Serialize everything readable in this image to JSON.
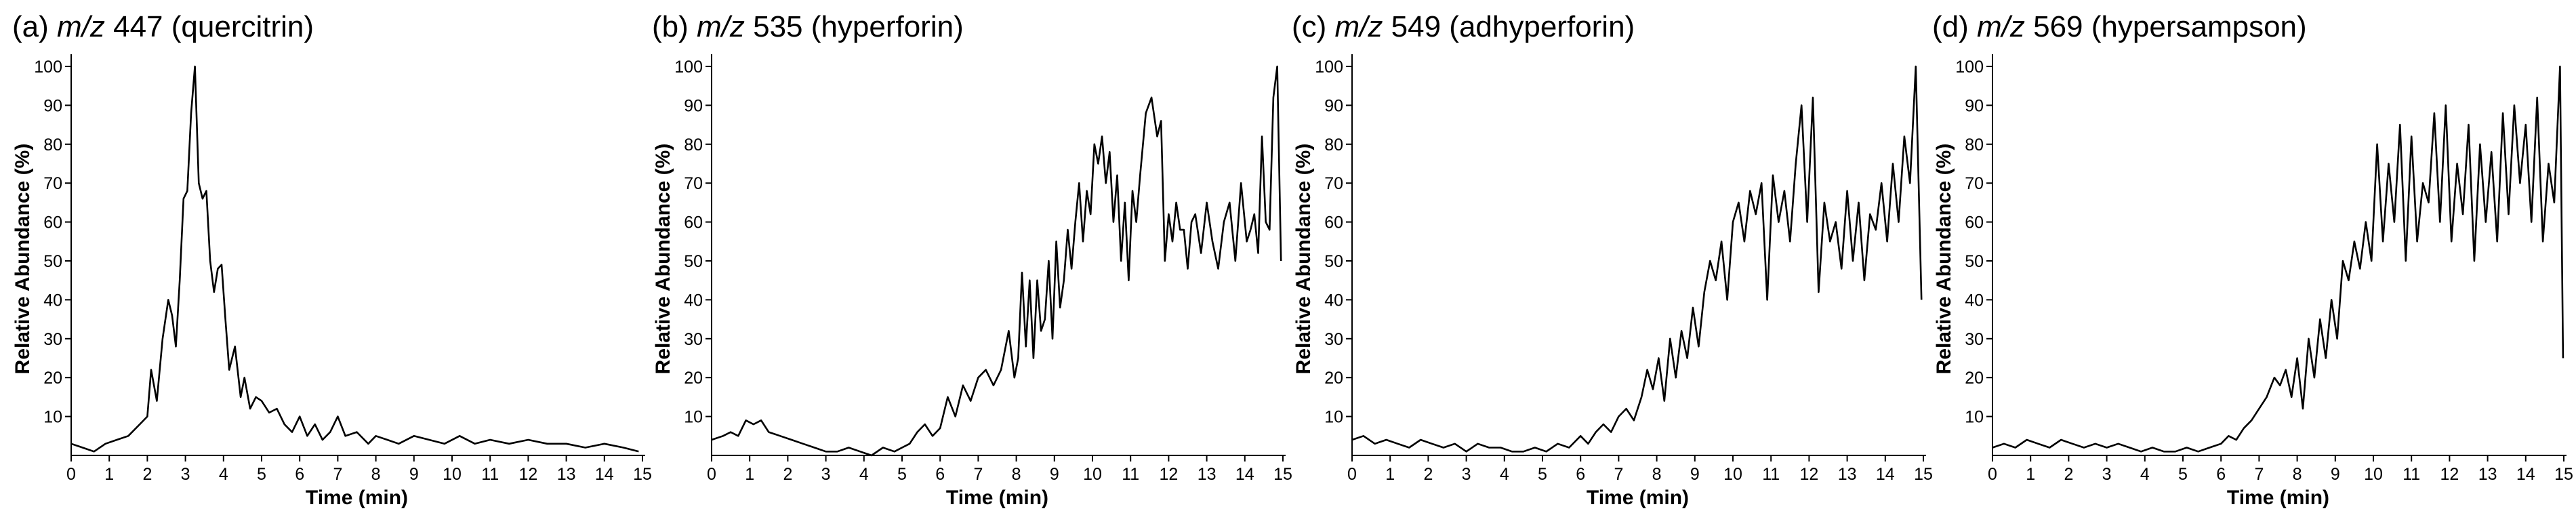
{
  "chart_data": [
    {
      "type": "line",
      "panel_label": "(a)",
      "title_mz": "m/z",
      "title_value": "447",
      "title_compound": "(quercitrin)",
      "xlabel": "Time (min)",
      "ylabel": "Relative Abundance (%)",
      "xlim": [
        0,
        15
      ],
      "ylim": [
        0,
        100
      ],
      "x_ticks": [
        "0",
        "1",
        "2",
        "3",
        "4",
        "5",
        "6",
        "7",
        "8",
        "9",
        "10",
        "11",
        "12",
        "13",
        "14",
        "15"
      ],
      "y_ticks": [
        "10",
        "20",
        "30",
        "40",
        "50",
        "60",
        "70",
        "80",
        "90",
        "100"
      ],
      "series": [
        {
          "x": [
            0,
            0.3,
            0.6,
            0.9,
            1.2,
            1.5,
            1.8,
            2.0,
            2.1,
            2.25,
            2.4,
            2.55,
            2.65,
            2.75,
            2.85,
            2.95,
            3.05,
            3.15,
            3.25,
            3.35,
            3.45,
            3.55,
            3.65,
            3.75,
            3.85,
            3.95,
            4.05,
            4.15,
            4.3,
            4.45,
            4.55,
            4.7,
            4.85,
            5.0,
            5.2,
            5.4,
            5.6,
            5.8,
            6.0,
            6.2,
            6.4,
            6.6,
            6.8,
            7.0,
            7.2,
            7.5,
            7.8,
            8.0,
            8.3,
            8.6,
            9.0,
            9.4,
            9.8,
            10.2,
            10.6,
            11.0,
            11.5,
            12.0,
            12.5,
            13.0,
            13.5,
            14.0,
            14.5,
            14.9
          ],
          "y": [
            3,
            2,
            1,
            3,
            4,
            5,
            8,
            10,
            22,
            14,
            30,
            40,
            36,
            28,
            45,
            66,
            68,
            88,
            100,
            70,
            66,
            68,
            50,
            42,
            48,
            49,
            35,
            22,
            28,
            15,
            20,
            12,
            15,
            14,
            11,
            12,
            8,
            6,
            10,
            5,
            8,
            4,
            6,
            10,
            5,
            6,
            3,
            5,
            4,
            3,
            5,
            4,
            3,
            5,
            3,
            4,
            3,
            4,
            3,
            3,
            2,
            3,
            2,
            1
          ]
        }
      ]
    },
    {
      "type": "line",
      "panel_label": "(b)",
      "title_mz": "m/z",
      "title_value": "535",
      "title_compound": "(hyperforin)",
      "xlabel": "Time (min)",
      "ylabel": "Relative Abundance (%)",
      "xlim": [
        0,
        15
      ],
      "ylim": [
        0,
        100
      ],
      "x_ticks": [
        "0",
        "1",
        "2",
        "3",
        "4",
        "5",
        "6",
        "7",
        "8",
        "9",
        "10",
        "11",
        "12",
        "13",
        "14",
        "15"
      ],
      "y_ticks": [
        "10",
        "20",
        "30",
        "40",
        "50",
        "60",
        "70",
        "80",
        "90",
        "100"
      ],
      "series": [
        {
          "x": [
            0,
            0.3,
            0.5,
            0.7,
            0.9,
            1.1,
            1.3,
            1.5,
            1.8,
            2.1,
            2.4,
            2.7,
            3.0,
            3.3,
            3.6,
            3.9,
            4.2,
            4.5,
            4.8,
            5.0,
            5.2,
            5.4,
            5.6,
            5.8,
            6.0,
            6.2,
            6.4,
            6.6,
            6.8,
            7.0,
            7.2,
            7.4,
            7.6,
            7.8,
            7.95,
            8.05,
            8.15,
            8.25,
            8.35,
            8.45,
            8.55,
            8.65,
            8.75,
            8.85,
            8.95,
            9.05,
            9.15,
            9.25,
            9.35,
            9.45,
            9.55,
            9.65,
            9.75,
            9.85,
            9.95,
            10.05,
            10.15,
            10.25,
            10.35,
            10.45,
            10.55,
            10.65,
            10.75,
            10.85,
            10.95,
            11.05,
            11.15,
            11.25,
            11.4,
            11.55,
            11.7,
            11.8,
            11.9,
            12.0,
            12.1,
            12.2,
            12.3,
            12.4,
            12.5,
            12.6,
            12.7,
            12.85,
            13.0,
            13.15,
            13.3,
            13.45,
            13.6,
            13.75,
            13.9,
            14.05,
            14.15,
            14.25,
            14.35,
            14.45,
            14.55,
            14.65,
            14.75,
            14.85,
            14.95
          ],
          "y": [
            4,
            5,
            6,
            5,
            9,
            8,
            9,
            6,
            5,
            4,
            3,
            2,
            1,
            1,
            2,
            1,
            0,
            2,
            1,
            2,
            3,
            6,
            8,
            5,
            7,
            15,
            10,
            18,
            14,
            20,
            22,
            18,
            22,
            32,
            20,
            25,
            47,
            28,
            45,
            25,
            45,
            32,
            35,
            50,
            30,
            55,
            38,
            45,
            58,
            48,
            60,
            70,
            55,
            68,
            62,
            80,
            75,
            82,
            70,
            78,
            60,
            72,
            50,
            65,
            45,
            68,
            60,
            72,
            88,
            92,
            82,
            86,
            50,
            62,
            55,
            65,
            58,
            58,
            48,
            60,
            62,
            52,
            65,
            55,
            48,
            60,
            65,
            50,
            70,
            55,
            58,
            62,
            52,
            82,
            60,
            58,
            92,
            100,
            50
          ]
        }
      ]
    },
    {
      "type": "line",
      "panel_label": "(c)",
      "title_mz": "m/z",
      "title_value": "549",
      "title_compound": "(adhyperforin)",
      "xlabel": "Time (min)",
      "ylabel": "Relative Abundance (%)",
      "xlim": [
        0,
        15
      ],
      "ylim": [
        0,
        100
      ],
      "x_ticks": [
        "0",
        "1",
        "2",
        "3",
        "4",
        "5",
        "6",
        "7",
        "8",
        "9",
        "10",
        "11",
        "12",
        "13",
        "14",
        "15"
      ],
      "y_ticks": [
        "10",
        "20",
        "30",
        "40",
        "50",
        "60",
        "70",
        "80",
        "90",
        "100"
      ],
      "series": [
        {
          "x": [
            0,
            0.3,
            0.6,
            0.9,
            1.2,
            1.5,
            1.8,
            2.1,
            2.4,
            2.7,
            3.0,
            3.3,
            3.6,
            3.9,
            4.2,
            4.5,
            4.8,
            5.1,
            5.4,
            5.7,
            6.0,
            6.2,
            6.4,
            6.6,
            6.8,
            7.0,
            7.2,
            7.4,
            7.6,
            7.75,
            7.9,
            8.05,
            8.2,
            8.35,
            8.5,
            8.65,
            8.8,
            8.95,
            9.1,
            9.25,
            9.4,
            9.55,
            9.7,
            9.85,
            10.0,
            10.15,
            10.3,
            10.45,
            10.6,
            10.75,
            10.9,
            11.05,
            11.2,
            11.35,
            11.5,
            11.65,
            11.8,
            11.95,
            12.1,
            12.25,
            12.4,
            12.55,
            12.7,
            12.85,
            13.0,
            13.15,
            13.3,
            13.45,
            13.6,
            13.75,
            13.9,
            14.05,
            14.2,
            14.35,
            14.5,
            14.65,
            14.8,
            14.95
          ],
          "y": [
            4,
            5,
            3,
            4,
            3,
            2,
            4,
            3,
            2,
            3,
            1,
            3,
            2,
            2,
            1,
            1,
            2,
            1,
            3,
            2,
            5,
            3,
            6,
            8,
            6,
            10,
            12,
            9,
            15,
            22,
            17,
            25,
            14,
            30,
            20,
            32,
            25,
            38,
            28,
            42,
            50,
            45,
            55,
            40,
            60,
            65,
            55,
            68,
            62,
            70,
            40,
            72,
            60,
            68,
            55,
            75,
            90,
            60,
            92,
            42,
            65,
            55,
            60,
            48,
            68,
            50,
            65,
            45,
            62,
            58,
            70,
            55,
            75,
            60,
            82,
            70,
            100,
            40
          ]
        }
      ]
    },
    {
      "type": "line",
      "panel_label": "(d)",
      "title_mz": "m/z",
      "title_value": "569",
      "title_compound": "(hypersampson)",
      "xlabel": "Time (min)",
      "ylabel": "Relative Abundance (%)",
      "xlim": [
        0,
        15
      ],
      "ylim": [
        0,
        100
      ],
      "x_ticks": [
        "0",
        "1",
        "2",
        "3",
        "4",
        "5",
        "6",
        "7",
        "8",
        "9",
        "10",
        "11",
        "12",
        "13",
        "14",
        "15"
      ],
      "y_ticks": [
        "10",
        "20",
        "30",
        "40",
        "50",
        "60",
        "70",
        "80",
        "90",
        "100"
      ],
      "series": [
        {
          "x": [
            0,
            0.3,
            0.6,
            0.9,
            1.2,
            1.5,
            1.8,
            2.1,
            2.4,
            2.7,
            3.0,
            3.3,
            3.6,
            3.9,
            4.2,
            4.5,
            4.8,
            5.1,
            5.4,
            5.7,
            6.0,
            6.2,
            6.4,
            6.6,
            6.8,
            7.0,
            7.2,
            7.4,
            7.55,
            7.7,
            7.85,
            8.0,
            8.15,
            8.3,
            8.45,
            8.6,
            8.75,
            8.9,
            9.05,
            9.2,
            9.35,
            9.5,
            9.65,
            9.8,
            9.95,
            10.1,
            10.25,
            10.4,
            10.55,
            10.7,
            10.85,
            11.0,
            11.15,
            11.3,
            11.45,
            11.6,
            11.75,
            11.9,
            12.05,
            12.2,
            12.35,
            12.5,
            12.65,
            12.8,
            12.95,
            13.1,
            13.25,
            13.4,
            13.55,
            13.7,
            13.85,
            14.0,
            14.15,
            14.3,
            14.45,
            14.6,
            14.75,
            14.9,
            14.98
          ],
          "y": [
            2,
            3,
            2,
            4,
            3,
            2,
            4,
            3,
            2,
            3,
            2,
            3,
            2,
            1,
            2,
            1,
            1,
            2,
            1,
            2,
            3,
            5,
            4,
            7,
            9,
            12,
            15,
            20,
            18,
            22,
            15,
            25,
            12,
            30,
            20,
            35,
            25,
            40,
            30,
            50,
            45,
            55,
            48,
            60,
            50,
            80,
            55,
            75,
            60,
            85,
            50,
            82,
            55,
            70,
            65,
            88,
            60,
            90,
            55,
            75,
            62,
            85,
            50,
            80,
            60,
            78,
            55,
            88,
            62,
            90,
            70,
            85,
            60,
            92,
            55,
            75,
            65,
            100,
            25
          ]
        }
      ]
    }
  ]
}
